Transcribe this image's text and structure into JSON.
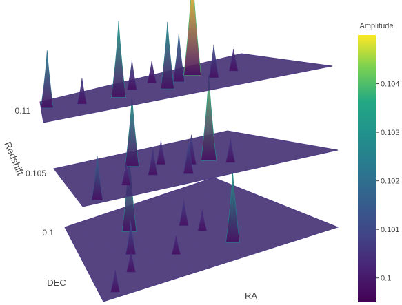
{
  "chart_data": {
    "type": "surface-3d",
    "zlabel": "Redshift",
    "xlabel": "RA",
    "ylabel": "DEC",
    "z_ticks": [
      "0.1",
      "0.105",
      "0.11"
    ],
    "layers": [
      {
        "redshift": 0.1,
        "peaks": [
          {
            "ra": 0.36,
            "dec": 0.28,
            "amplitude": 0.1035
          },
          {
            "ra": 0.92,
            "dec": 0.8,
            "amplitude": 0.1032
          },
          {
            "ra": 0.3,
            "dec": 0.55,
            "amplitude": 0.1012
          },
          {
            "ra": 0.69,
            "dec": 0.42,
            "amplitude": 0.1008
          },
          {
            "ra": 0.25,
            "dec": 0.75,
            "amplitude": 0.1005
          },
          {
            "ra": 0.1,
            "dec": 0.92,
            "amplitude": 0.1006
          },
          {
            "ra": 0.78,
            "dec": 0.55,
            "amplitude": 0.1005
          },
          {
            "ra": 0.56,
            "dec": 0.72,
            "amplitude": 0.1004
          }
        ]
      },
      {
        "redshift": 0.105,
        "peaks": [
          {
            "ra": 0.8,
            "dec": 0.55,
            "amplitude": 0.104
          },
          {
            "ra": 0.4,
            "dec": 0.3,
            "amplitude": 0.1032
          },
          {
            "ra": 0.1,
            "dec": 0.9,
            "amplitude": 0.1018
          },
          {
            "ra": 0.65,
            "dec": 0.75,
            "amplitude": 0.1012
          },
          {
            "ra": 0.7,
            "dec": 0.55,
            "amplitude": 0.101
          },
          {
            "ra": 0.47,
            "dec": 0.6,
            "amplitude": 0.1008
          },
          {
            "ra": 0.55,
            "dec": 0.4,
            "amplitude": 0.1007
          },
          {
            "ra": 0.3,
            "dec": 0.7,
            "amplitude": 0.1006
          },
          {
            "ra": 0.9,
            "dec": 0.7,
            "amplitude": 0.1007
          }
        ]
      },
      {
        "redshift": 0.11,
        "peaks": [
          {
            "ra": 0.75,
            "dec": 0.4,
            "amplitude": 0.105
          },
          {
            "ra": 0.38,
            "dec": 0.6,
            "amplitude": 0.1035
          },
          {
            "ra": 0.62,
            "dec": 0.75,
            "amplitude": 0.103
          },
          {
            "ra": 0.03,
            "dec": 0.3,
            "amplitude": 0.1025
          },
          {
            "ra": 0.68,
            "dec": 0.55,
            "amplitude": 0.102
          },
          {
            "ra": 0.85,
            "dec": 0.75,
            "amplitude": 0.1012
          },
          {
            "ra": 0.45,
            "dec": 0.4,
            "amplitude": 0.101
          },
          {
            "ra": 0.2,
            "dec": 0.5,
            "amplitude": 0.1008
          },
          {
            "ra": 0.55,
            "dec": 0.3,
            "amplitude": 0.1006
          },
          {
            "ra": 0.95,
            "dec": 0.65,
            "amplitude": 0.1006
          }
        ]
      }
    ],
    "colorbar": {
      "title": "Amplitude",
      "range": [
        0.0995,
        0.105
      ],
      "ticks": [
        {
          "value": 0.1,
          "label": "0.1"
        },
        {
          "value": 0.101,
          "label": "0.101"
        },
        {
          "value": 0.102,
          "label": "0.102"
        },
        {
          "value": 0.103,
          "label": "0.103"
        },
        {
          "value": 0.104,
          "label": "0.104"
        }
      ],
      "colorscale": "viridis"
    }
  }
}
